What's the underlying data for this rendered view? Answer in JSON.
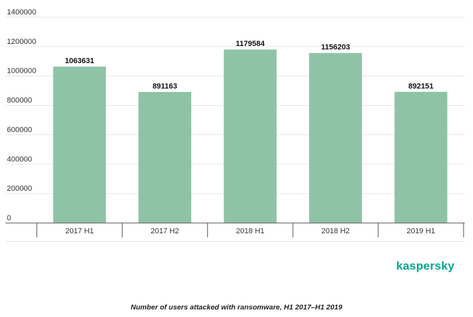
{
  "chart_data": {
    "type": "bar",
    "categories": [
      "2017 H1",
      "2017 H2",
      "2018 H1",
      "2018 H2",
      "2019 H1"
    ],
    "values": [
      1063631,
      891163,
      1179584,
      1156203,
      892151
    ],
    "data_labels": [
      "1063631",
      "891163",
      "1179584",
      "1156203",
      "892151"
    ],
    "yticks": [
      0,
      200000,
      400000,
      600000,
      800000,
      1000000,
      1200000,
      1400000
    ],
    "ytick_labels": [
      "0",
      "200000",
      "400000",
      "600000",
      "800000",
      "1000000",
      "1200000",
      "1400000"
    ],
    "ylim": [
      0,
      1400000
    ],
    "grid": true,
    "bar_color": "#8fc3a6",
    "caption": "Number of users attacked with ransomware, H1 2017–H1 2019"
  },
  "branding": {
    "logo_text": "kaspersky",
    "color": "#00a88e"
  }
}
